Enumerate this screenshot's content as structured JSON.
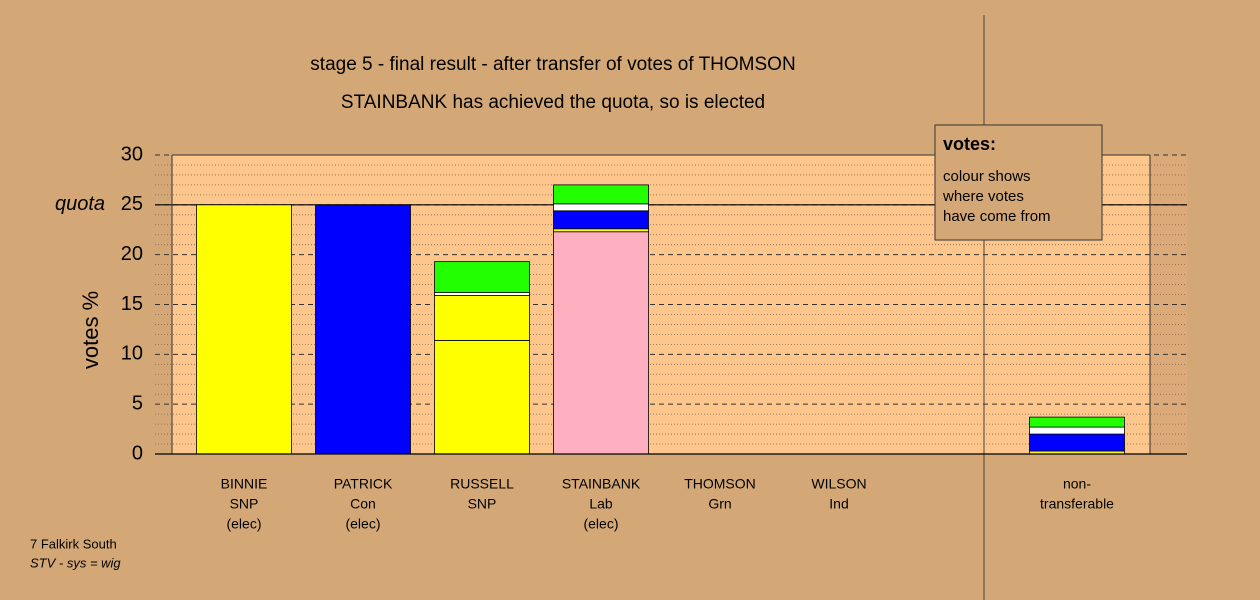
{
  "chart_data": {
    "type": "stacked-bar",
    "title": "stage 5 - final result - after transfer of votes of THOMSON",
    "subtitle": "STAINBANK has achieved the quota, so is elected",
    "y_label": "votes %",
    "quota_label": "quota",
    "quota": 25,
    "ylim": [
      0,
      30
    ],
    "yticks": [
      0,
      5,
      10,
      15,
      20,
      25,
      30
    ],
    "minor_yticks": [
      1,
      2,
      3,
      4,
      6,
      7,
      8,
      9,
      11,
      12,
      13,
      14,
      16,
      17,
      18,
      19,
      21,
      22,
      23,
      24,
      26,
      27,
      28,
      29
    ],
    "categories": [
      [
        "BINNIE",
        "SNP",
        "(elec)"
      ],
      [
        "PATRICK",
        "Con",
        "(elec)"
      ],
      [
        "RUSSELL",
        "SNP"
      ],
      [
        "STAINBANK",
        "Lab",
        "(elec)"
      ],
      [
        "THOMSON",
        "Grn"
      ],
      [
        "WILSON",
        "Ind"
      ],
      null,
      [
        "non-",
        "transferable"
      ]
    ],
    "stacks": [
      [
        {
          "color": "#ffff00",
          "value": 25
        }
      ],
      [
        {
          "color": "#0000ff",
          "value": 25
        }
      ],
      [
        {
          "color": "#ffff00",
          "value": 11.4
        },
        {
          "color": "#ffff00",
          "value": 4.5
        },
        {
          "color": "#ffffff",
          "value": 0.3
        },
        {
          "color": "#22ff00",
          "value": 3.1
        }
      ],
      [
        {
          "color": "#ffb0c0",
          "value": 22.3
        },
        {
          "color": "#ffff00",
          "value": 0.3
        },
        {
          "color": "#0000ff",
          "value": 1.8
        },
        {
          "color": "#ffffff",
          "value": 0.7
        },
        {
          "color": "#22ff00",
          "value": 1.9
        }
      ],
      [],
      [],
      [],
      [
        {
          "color": "#ffff00",
          "value": 0.3
        },
        {
          "color": "#0000ff",
          "value": 1.7
        },
        {
          "color": "#ffffff",
          "value": 0.7
        },
        {
          "color": "#22ff00",
          "value": 1.0
        }
      ]
    ],
    "legend": {
      "title": "votes:",
      "lines": [
        "colour shows",
        "where votes",
        "have come from"
      ]
    },
    "footer": [
      "7 Falkirk South",
      "STV - sys = wig"
    ]
  }
}
